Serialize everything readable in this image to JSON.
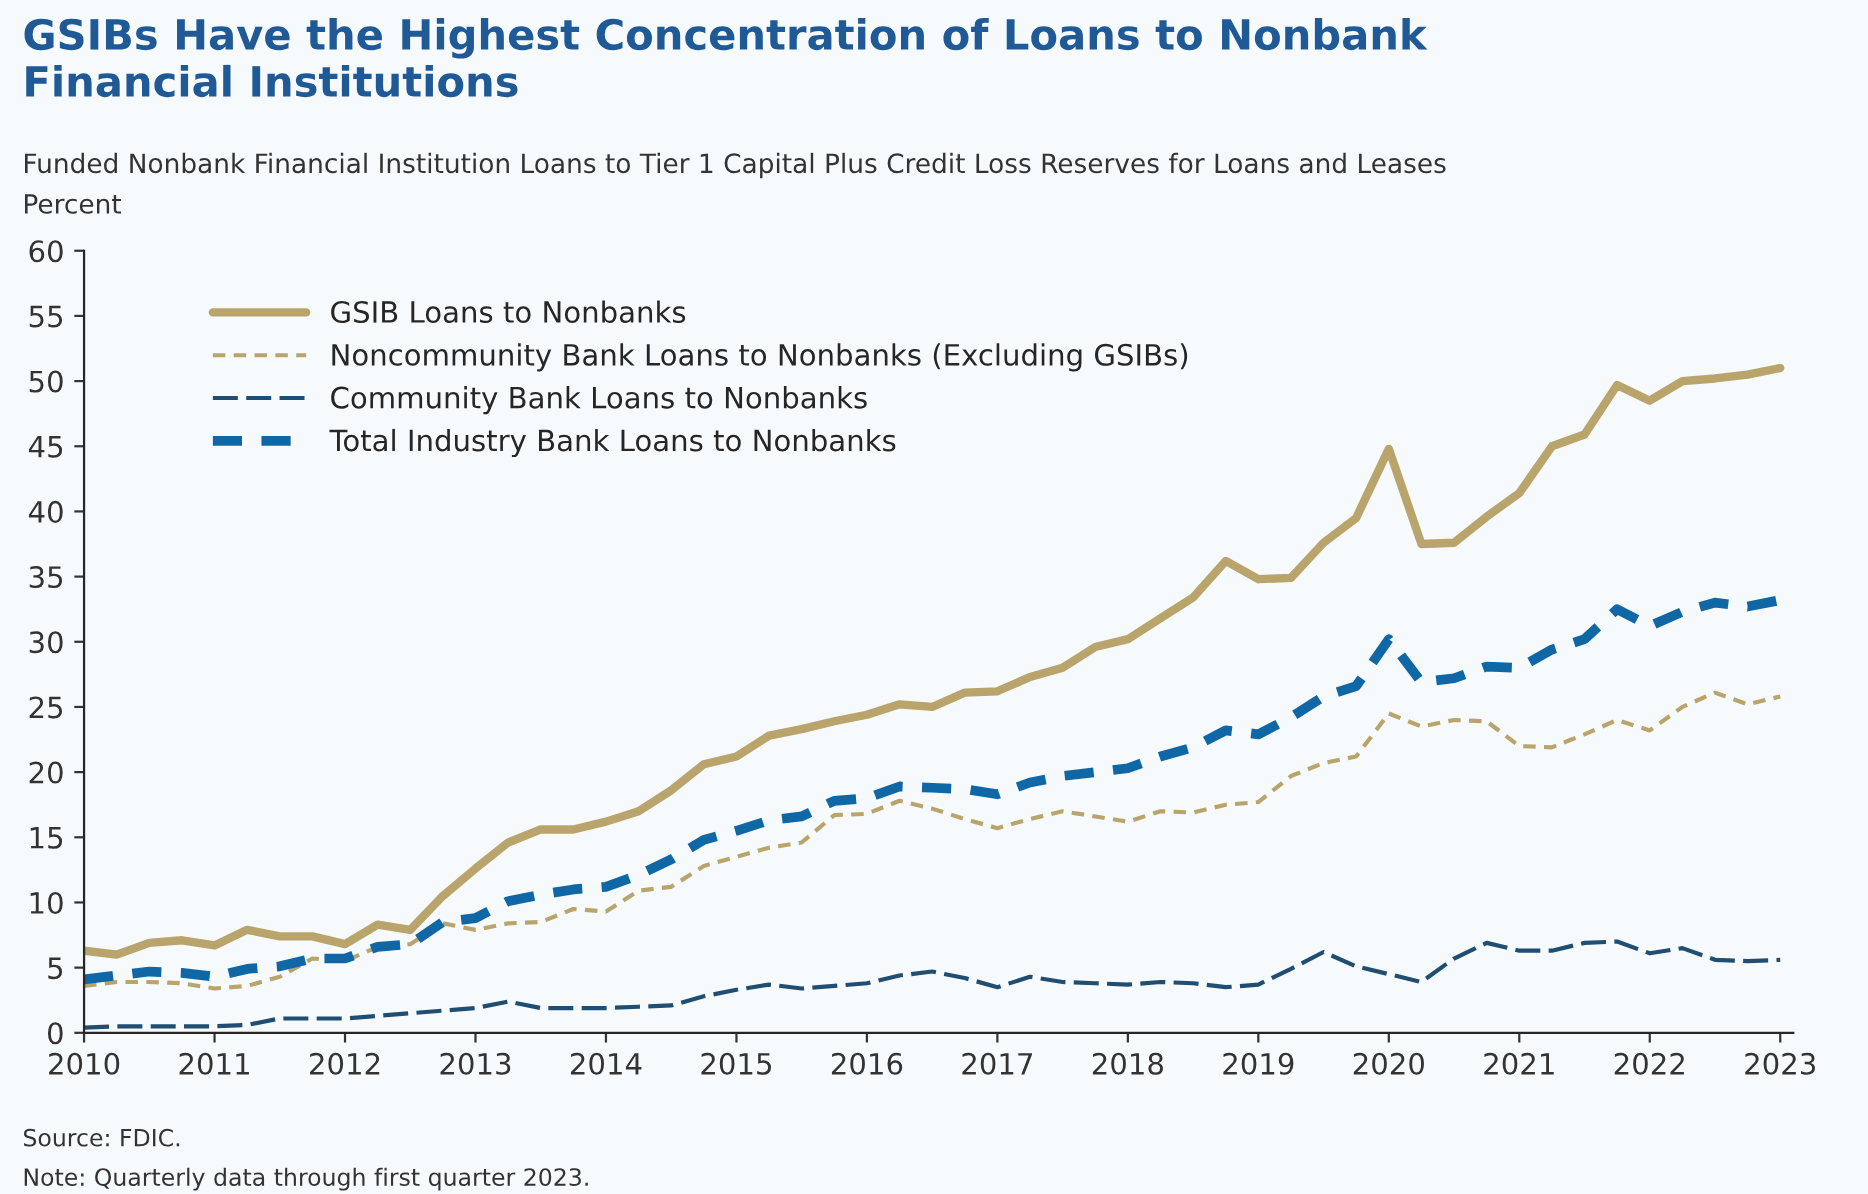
{
  "chart_data": {
    "type": "line",
    "title": "GSIBs Have the Highest Concentration of Loans to Nonbank\nFinancial Institutions",
    "subtitle": "Funded Nonbank Financial Institution Loans to Tier 1 Capital Plus Credit Loss Reserves for Loans and Leases",
    "ylabel": "Percent",
    "annotations": [
      "Source: FDIC.",
      "Note: Quarterly data through first quarter 2023."
    ],
    "x": [
      2010.0,
      2010.25,
      2010.5,
      2010.75,
      2011.0,
      2011.25,
      2011.5,
      2011.75,
      2012.0,
      2012.25,
      2012.5,
      2012.75,
      2013.0,
      2013.25,
      2013.5,
      2013.75,
      2014.0,
      2014.25,
      2014.5,
      2014.75,
      2015.0,
      2015.25,
      2015.5,
      2015.75,
      2016.0,
      2016.25,
      2016.5,
      2016.75,
      2017.0,
      2017.25,
      2017.5,
      2017.75,
      2018.0,
      2018.25,
      2018.5,
      2018.75,
      2019.0,
      2019.25,
      2019.5,
      2019.75,
      2020.0,
      2020.25,
      2020.5,
      2020.75,
      2021.0,
      2021.25,
      2021.5,
      2021.75,
      2022.0,
      2022.25,
      2022.5,
      2022.75,
      2023.0
    ],
    "series": [
      {
        "name": "GSIB Loans to Nonbanks",
        "color": "#b9a56b",
        "line_style": "solid",
        "values": [
          6.3,
          6.0,
          6.9,
          7.1,
          6.7,
          7.9,
          7.4,
          7.4,
          6.8,
          8.3,
          7.9,
          10.5,
          12.6,
          14.6,
          15.6,
          15.6,
          16.2,
          17.0,
          18.6,
          20.6,
          21.2,
          22.8,
          23.3,
          23.9,
          24.4,
          25.2,
          25.0,
          26.1,
          26.2,
          27.3,
          28.0,
          29.6,
          30.2,
          31.8,
          33.4,
          36.2,
          34.8,
          34.9,
          37.6,
          39.5,
          44.8,
          37.5,
          37.6,
          39.6,
          41.4,
          45.0,
          45.9,
          49.7,
          48.5,
          50.0,
          50.2,
          50.5,
          51.0
        ]
      },
      {
        "name": "Noncommunity Bank Loans to Nonbanks (Excluding GSIBs)",
        "color": "#b9a56b",
        "line_style": "dashed",
        "values": [
          3.6,
          3.9,
          3.9,
          3.8,
          3.4,
          3.6,
          4.3,
          5.7,
          5.5,
          6.6,
          6.8,
          8.4,
          7.9,
          8.4,
          8.5,
          9.5,
          9.3,
          10.9,
          11.2,
          12.8,
          13.5,
          14.2,
          14.6,
          16.7,
          16.8,
          17.8,
          17.2,
          16.4,
          15.7,
          16.4,
          17.0,
          16.6,
          16.2,
          17.0,
          16.9,
          17.5,
          17.7,
          19.7,
          20.7,
          21.2,
          24.5,
          23.5,
          24.0,
          23.9,
          22.0,
          21.9,
          22.9,
          24.0,
          23.2,
          25.0,
          26.1,
          25.2,
          25.8
        ]
      },
      {
        "name": "Community Bank Loans to Nonbanks",
        "color": "#1f4e72",
        "line_style": "dashed",
        "values": [
          0.4,
          0.5,
          0.5,
          0.5,
          0.5,
          0.6,
          1.1,
          1.1,
          1.1,
          1.3,
          1.5,
          1.7,
          1.9,
          2.4,
          1.9,
          1.9,
          1.9,
          2.0,
          2.1,
          2.8,
          3.3,
          3.7,
          3.4,
          3.6,
          3.8,
          4.4,
          4.7,
          4.2,
          3.5,
          4.3,
          3.9,
          3.8,
          3.7,
          3.9,
          3.8,
          3.5,
          3.7,
          4.9,
          6.2,
          5.1,
          4.5,
          3.9,
          5.7,
          6.9,
          6.3,
          6.3,
          6.9,
          7.0,
          6.1,
          6.5,
          5.6,
          5.5,
          5.6
        ]
      },
      {
        "name": "Total Industry Bank Loans to Nonbanks",
        "color": "#0f67a5",
        "line_style": "dashed",
        "values": [
          4.1,
          4.4,
          4.7,
          4.6,
          4.3,
          4.9,
          5.1,
          5.7,
          5.7,
          6.6,
          6.8,
          8.5,
          8.8,
          10.1,
          10.6,
          11.0,
          11.2,
          12.1,
          13.3,
          14.8,
          15.5,
          16.3,
          16.6,
          17.8,
          18.0,
          18.9,
          18.8,
          18.7,
          18.3,
          19.2,
          19.7,
          20.0,
          20.3,
          21.2,
          21.9,
          23.2,
          22.9,
          24.2,
          25.8,
          26.6,
          30.2,
          26.9,
          27.2,
          28.1,
          28.0,
          29.4,
          30.2,
          32.5,
          31.2,
          32.3,
          33.0,
          32.7,
          33.2
        ]
      }
    ],
    "xlim": [
      2010,
      2023.1
    ],
    "xticks": [
      2010,
      2011,
      2012,
      2013,
      2014,
      2015,
      2016,
      2017,
      2018,
      2019,
      2020,
      2021,
      2022,
      2023
    ],
    "ylim": [
      0,
      60
    ],
    "yticks": [
      0,
      5,
      10,
      15,
      20,
      25,
      30,
      35,
      40,
      45,
      50,
      55,
      60
    ],
    "grid": false,
    "legend": "top left"
  }
}
